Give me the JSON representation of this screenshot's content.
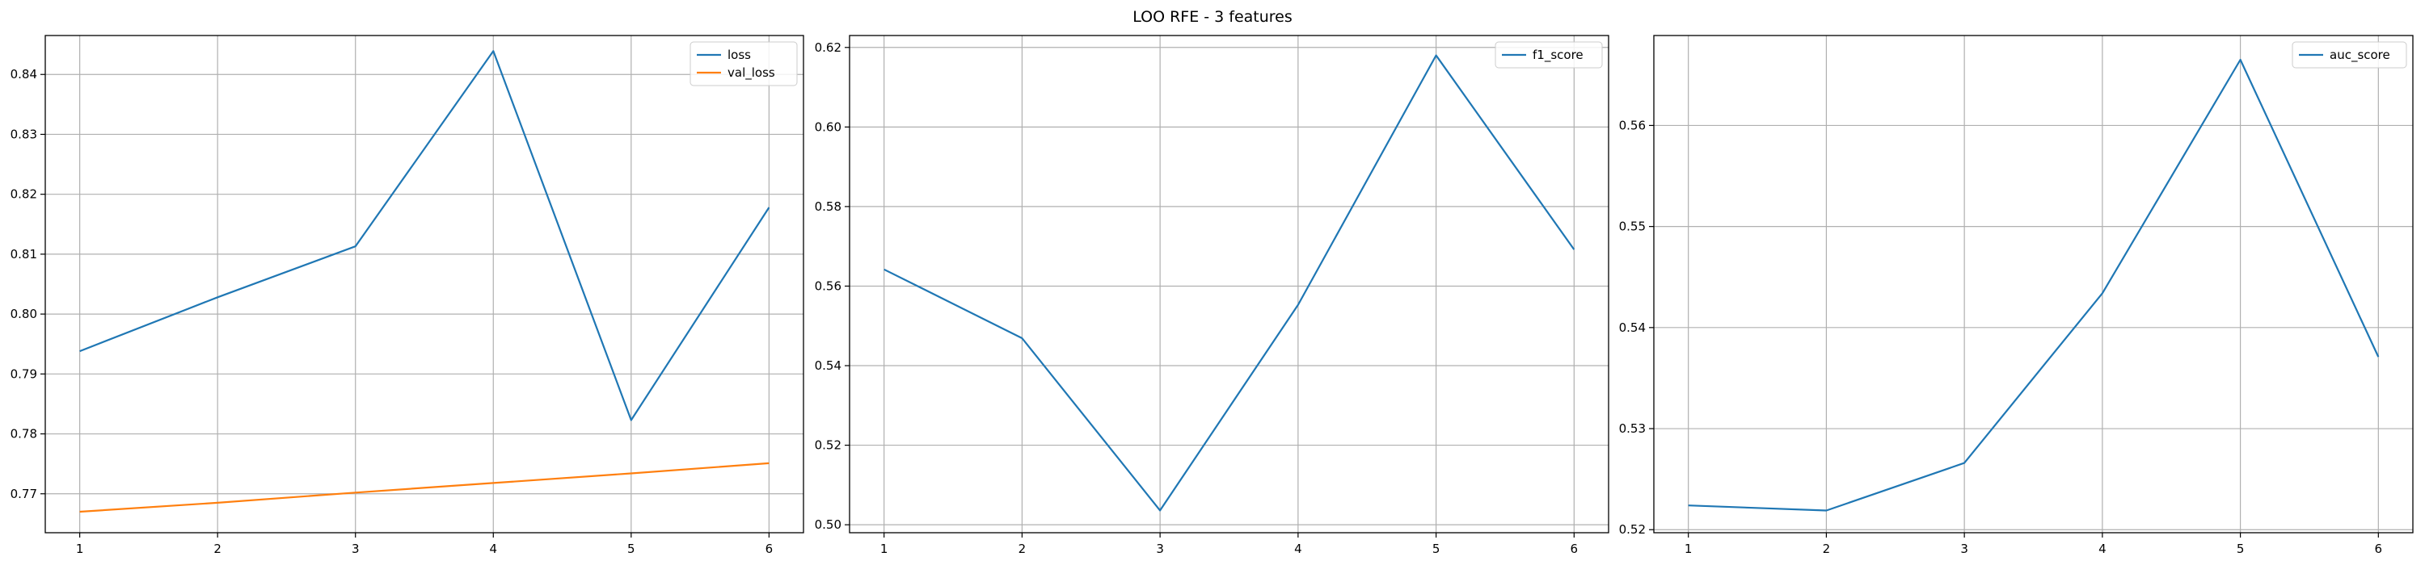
{
  "suptitle": "LOO RFE - 3 features",
  "chart_data": [
    {
      "type": "line",
      "x": [
        1,
        2,
        3,
        4,
        5,
        6
      ],
      "xticks": [
        "1",
        "2",
        "3",
        "4",
        "5",
        "6"
      ],
      "ylim": [
        0.7635,
        0.8465
      ],
      "yticks": [
        0.77,
        0.78,
        0.79,
        0.8,
        0.81,
        0.82,
        0.83,
        0.84
      ],
      "ytick_labels": [
        "0.77",
        "0.78",
        "0.79",
        "0.80",
        "0.81",
        "0.82",
        "0.83",
        "0.84"
      ],
      "grid": true,
      "legend": "upper right",
      "series": [
        {
          "name": "loss",
          "color": "#1f77b4",
          "values": [
            0.7938,
            0.8028,
            0.8113,
            0.8439,
            0.7823,
            0.8178
          ]
        },
        {
          "name": "val_loss",
          "color": "#ff7f0e",
          "values": [
            0.767,
            0.7685,
            0.7702,
            0.7718,
            0.7734,
            0.7751
          ]
        }
      ]
    },
    {
      "type": "line",
      "x": [
        1,
        2,
        3,
        4,
        5,
        6
      ],
      "xticks": [
        "1",
        "2",
        "3",
        "4",
        "5",
        "6"
      ],
      "ylim": [
        0.498,
        0.623
      ],
      "yticks": [
        0.5,
        0.52,
        0.54,
        0.56,
        0.58,
        0.6,
        0.62
      ],
      "ytick_labels": [
        "0.50",
        "0.52",
        "0.54",
        "0.56",
        "0.58",
        "0.60",
        "0.62"
      ],
      "grid": true,
      "legend": "upper right",
      "series": [
        {
          "name": "f1_score",
          "color": "#1f77b4",
          "values": [
            0.5642,
            0.5469,
            0.5036,
            0.5553,
            0.618,
            0.5692
          ]
        }
      ]
    },
    {
      "type": "line",
      "x": [
        1,
        2,
        3,
        4,
        5,
        6
      ],
      "xticks": [
        "1",
        "2",
        "3",
        "4",
        "5",
        "6"
      ],
      "ylim": [
        0.5197,
        0.5689
      ],
      "yticks": [
        0.52,
        0.53,
        0.54,
        0.55,
        0.56
      ],
      "ytick_labels": [
        "0.52",
        "0.53",
        "0.54",
        "0.55",
        "0.56"
      ],
      "grid": true,
      "legend": "upper right",
      "series": [
        {
          "name": "auc_score",
          "color": "#1f77b4",
          "values": [
            0.5224,
            0.5219,
            0.5266,
            0.5434,
            0.5665,
            0.5371
          ]
        }
      ]
    }
  ]
}
